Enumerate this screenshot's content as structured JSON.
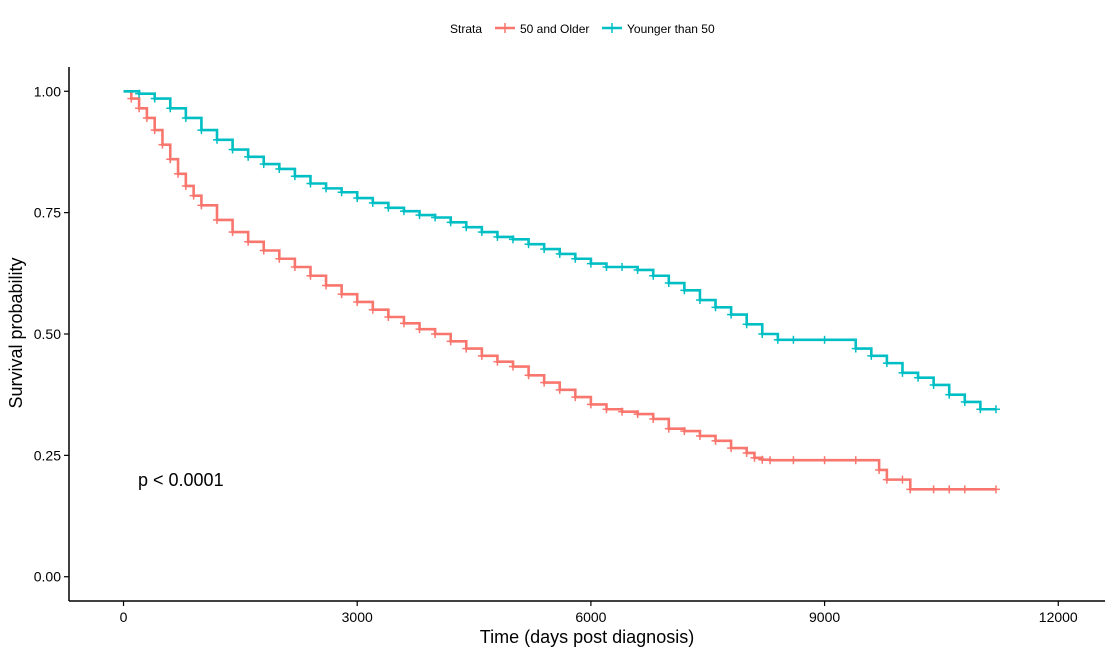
{
  "chart_data": {
    "type": "line",
    "xlabel": "Time (days post diagnosis)",
    "ylabel": "Survival probability",
    "xlim": [
      -700,
      12600
    ],
    "ylim": [
      -0.05,
      1.05
    ],
    "x_ticks": [
      0,
      3000,
      6000,
      9000,
      12000
    ],
    "x_tick_labels": [
      "0",
      "3000",
      "6000",
      "9000",
      "12000"
    ],
    "y_ticks": [
      0.0,
      0.25,
      0.5,
      0.75,
      1.0
    ],
    "y_tick_labels": [
      "0.00",
      "0.25",
      "0.50",
      "0.75",
      "1.00"
    ],
    "grid": false,
    "legend": {
      "title": "Strata",
      "position": "top"
    },
    "annotation": "p < 0.0001",
    "series": [
      {
        "name": "50 and Older",
        "color": "#F8766D",
        "values": [
          [
            0,
            1.0
          ],
          [
            100,
            0.985
          ],
          [
            200,
            0.965
          ],
          [
            300,
            0.945
          ],
          [
            400,
            0.92
          ],
          [
            500,
            0.89
          ],
          [
            600,
            0.86
          ],
          [
            700,
            0.83
          ],
          [
            800,
            0.805
          ],
          [
            900,
            0.785
          ],
          [
            1000,
            0.765
          ],
          [
            1200,
            0.735
          ],
          [
            1400,
            0.71
          ],
          [
            1600,
            0.69
          ],
          [
            1800,
            0.672
          ],
          [
            2000,
            0.655
          ],
          [
            2200,
            0.638
          ],
          [
            2400,
            0.62
          ],
          [
            2600,
            0.6
          ],
          [
            2800,
            0.582
          ],
          [
            3000,
            0.566
          ],
          [
            3200,
            0.55
          ],
          [
            3400,
            0.535
          ],
          [
            3600,
            0.522
          ],
          [
            3800,
            0.51
          ],
          [
            4000,
            0.5
          ],
          [
            4200,
            0.485
          ],
          [
            4400,
            0.47
          ],
          [
            4600,
            0.455
          ],
          [
            4800,
            0.443
          ],
          [
            5000,
            0.433
          ],
          [
            5200,
            0.415
          ],
          [
            5400,
            0.4
          ],
          [
            5600,
            0.385
          ],
          [
            5800,
            0.37
          ],
          [
            6000,
            0.355
          ],
          [
            6200,
            0.345
          ],
          [
            6400,
            0.34
          ],
          [
            6600,
            0.335
          ],
          [
            6800,
            0.325
          ],
          [
            7000,
            0.305
          ],
          [
            7200,
            0.3
          ],
          [
            7400,
            0.29
          ],
          [
            7600,
            0.28
          ],
          [
            7800,
            0.265
          ],
          [
            8000,
            0.255
          ],
          [
            8100,
            0.245
          ],
          [
            8200,
            0.241
          ],
          [
            8300,
            0.24
          ],
          [
            8600,
            0.24
          ],
          [
            9000,
            0.24
          ],
          [
            9400,
            0.24
          ],
          [
            9700,
            0.22
          ],
          [
            9800,
            0.2
          ],
          [
            10000,
            0.2
          ],
          [
            10100,
            0.18
          ],
          [
            10400,
            0.18
          ],
          [
            10600,
            0.18
          ],
          [
            10800,
            0.18
          ],
          [
            11200,
            0.18
          ]
        ]
      },
      {
        "name": "Younger than 50",
        "color": "#00BFC4",
        "values": [
          [
            0,
            1.0
          ],
          [
            200,
            0.995
          ],
          [
            400,
            0.985
          ],
          [
            600,
            0.965
          ],
          [
            800,
            0.945
          ],
          [
            1000,
            0.92
          ],
          [
            1200,
            0.9
          ],
          [
            1400,
            0.88
          ],
          [
            1600,
            0.865
          ],
          [
            1800,
            0.85
          ],
          [
            2000,
            0.84
          ],
          [
            2200,
            0.825
          ],
          [
            2400,
            0.81
          ],
          [
            2600,
            0.8
          ],
          [
            2800,
            0.792
          ],
          [
            3000,
            0.78
          ],
          [
            3200,
            0.77
          ],
          [
            3400,
            0.76
          ],
          [
            3600,
            0.753
          ],
          [
            3800,
            0.745
          ],
          [
            4000,
            0.74
          ],
          [
            4200,
            0.73
          ],
          [
            4400,
            0.72
          ],
          [
            4600,
            0.71
          ],
          [
            4800,
            0.7
          ],
          [
            5000,
            0.695
          ],
          [
            5200,
            0.685
          ],
          [
            5400,
            0.675
          ],
          [
            5600,
            0.665
          ],
          [
            5800,
            0.655
          ],
          [
            6000,
            0.645
          ],
          [
            6200,
            0.638
          ],
          [
            6400,
            0.638
          ],
          [
            6600,
            0.632
          ],
          [
            6800,
            0.62
          ],
          [
            7000,
            0.605
          ],
          [
            7200,
            0.59
          ],
          [
            7400,
            0.57
          ],
          [
            7600,
            0.555
          ],
          [
            7800,
            0.54
          ],
          [
            8000,
            0.52
          ],
          [
            8200,
            0.5
          ],
          [
            8400,
            0.488
          ],
          [
            8600,
            0.488
          ],
          [
            9000,
            0.488
          ],
          [
            9400,
            0.47
          ],
          [
            9600,
            0.455
          ],
          [
            9800,
            0.44
          ],
          [
            10000,
            0.42
          ],
          [
            10200,
            0.41
          ],
          [
            10400,
            0.395
          ],
          [
            10600,
            0.375
          ],
          [
            10800,
            0.36
          ],
          [
            11000,
            0.345
          ],
          [
            11200,
            0.345
          ]
        ]
      }
    ]
  }
}
